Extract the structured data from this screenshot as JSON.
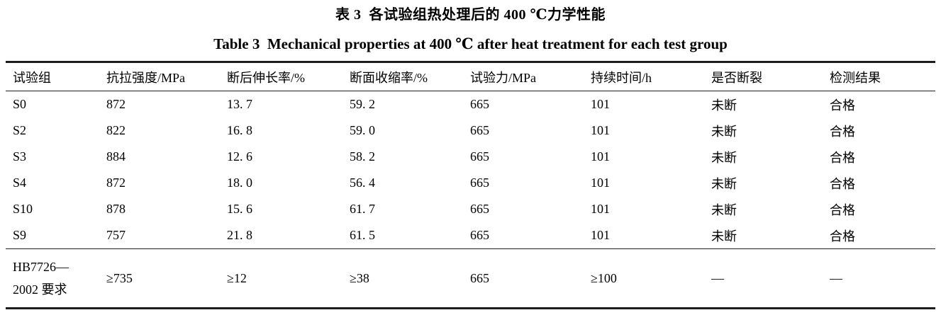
{
  "titles": {
    "chinese": "表 3  各试验组热处理后的 400 ℃力学性能",
    "english": "Table 3  Mechanical properties at 400 ℃ after heat treatment for each test group"
  },
  "table": {
    "columns": [
      "试验组",
      "抗拉强度/MPa",
      "断后伸长率/%",
      "断面收缩率/%",
      "试验力/MPa",
      "持续时间/h",
      "是否断裂",
      "检测结果"
    ],
    "rows": [
      {
        "cells": [
          "S0",
          "872",
          "13. 7",
          "59. 2",
          "665",
          "101",
          "未断",
          "合格"
        ]
      },
      {
        "cells": [
          "S2",
          "822",
          "16. 8",
          "59. 0",
          "665",
          "101",
          "未断",
          "合格"
        ]
      },
      {
        "cells": [
          "S3",
          "884",
          "12. 6",
          "58. 2",
          "665",
          "101",
          "未断",
          "合格"
        ]
      },
      {
        "cells": [
          "S4",
          "872",
          "18. 0",
          "56. 4",
          "665",
          "101",
          "未断",
          "合格"
        ]
      },
      {
        "cells": [
          "S10",
          "878",
          "15. 6",
          "61. 7",
          "665",
          "101",
          "未断",
          "合格"
        ]
      },
      {
        "cells": [
          "S9",
          "757",
          "21. 8",
          "61. 5",
          "665",
          "101",
          "未断",
          "合格"
        ]
      },
      {
        "cells": [
          "HB7726—\n2002 要求",
          "≥735",
          "≥12",
          "≥38",
          "665",
          "≥100",
          "—",
          "—"
        ],
        "requirement": true
      }
    ]
  },
  "colors": {
    "text": "#000000",
    "rule": "#1d1d1d",
    "background": "#ffffff"
  }
}
